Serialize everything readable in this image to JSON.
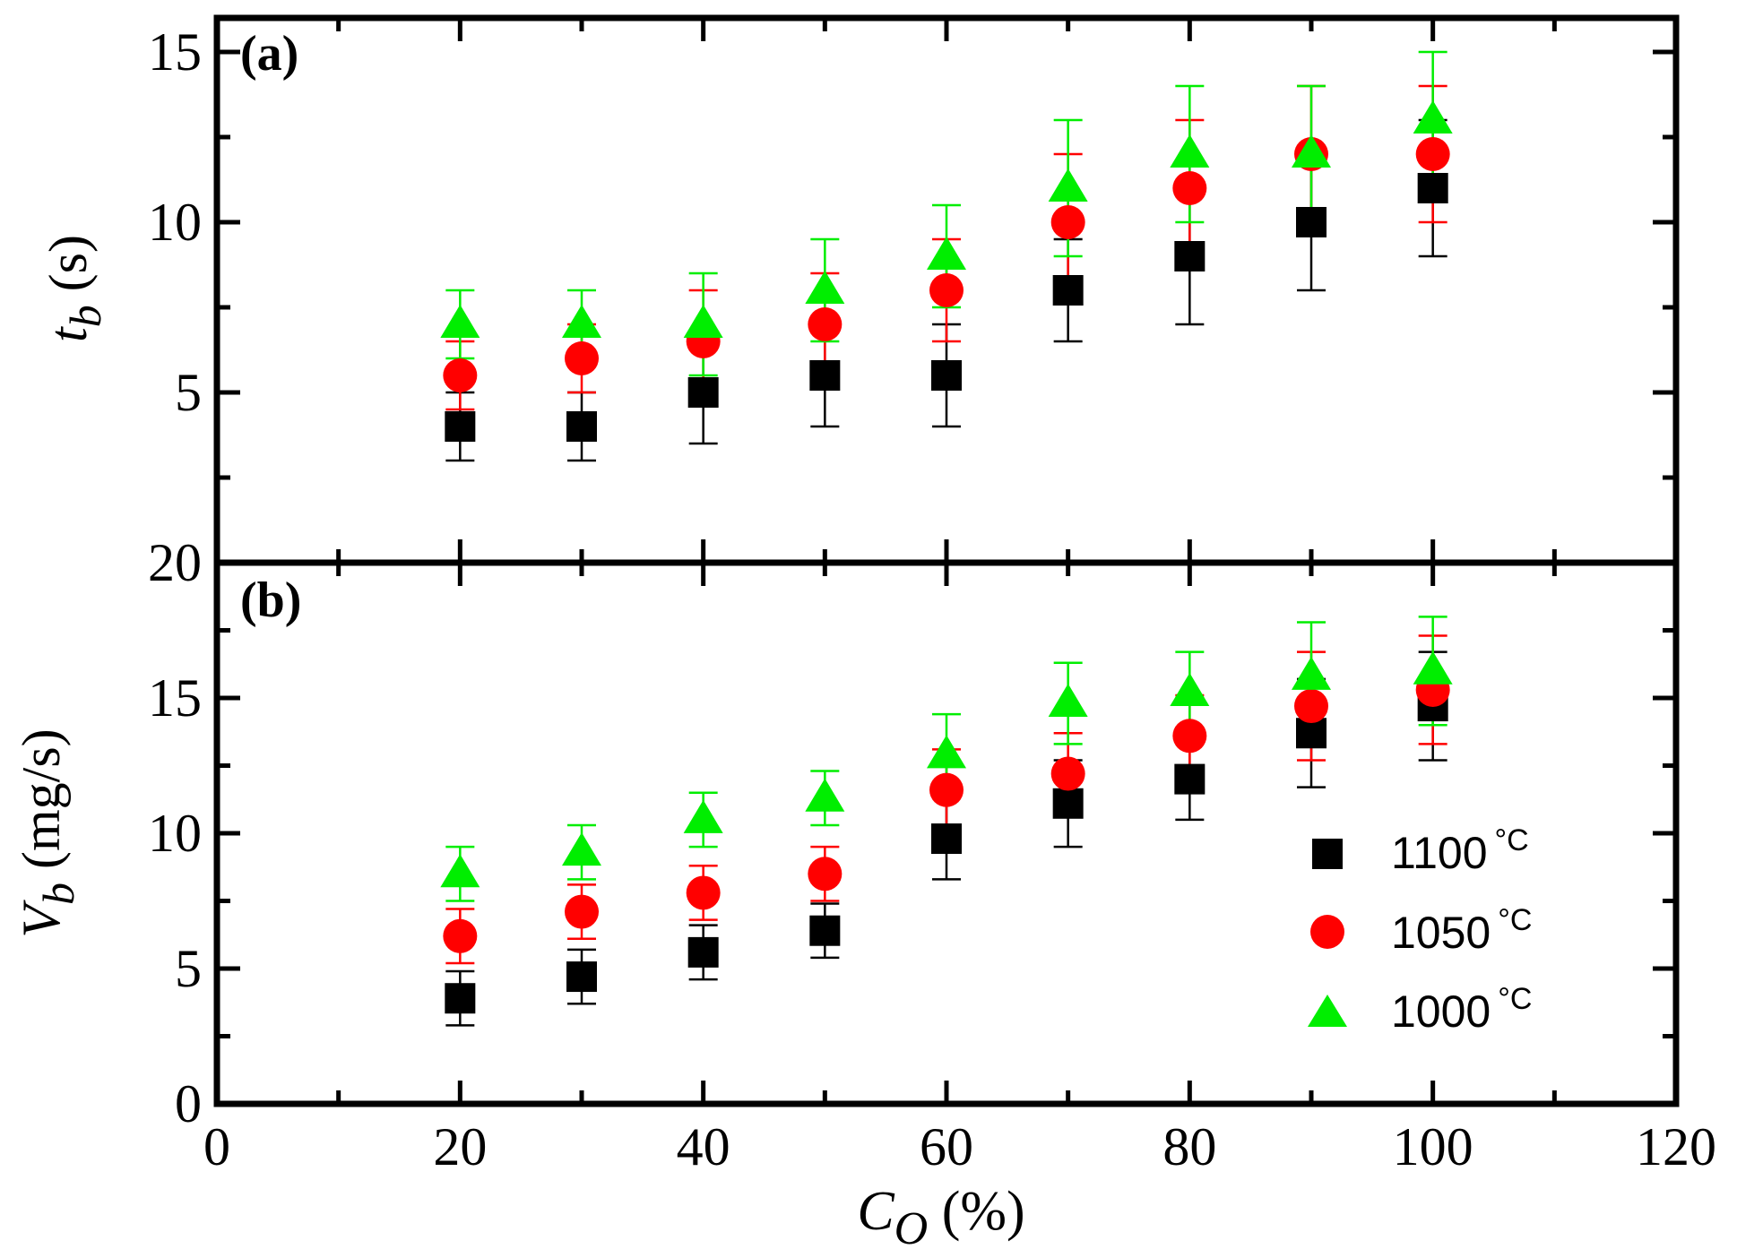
{
  "chart_data": [
    {
      "type": "scatter",
      "panel_label": "(a)",
      "ylabel_var": "t",
      "ylabel_sub": "b",
      "ylabel_unit": " (s)",
      "xlim": [
        0,
        120
      ],
      "ylim": [
        0,
        16
      ],
      "yticks": [
        5,
        10,
        15
      ],
      "error_bars": true,
      "series": [
        {
          "name": "1100 °C",
          "marker": "square",
          "color": "#000000",
          "x": [
            20,
            30,
            40,
            50,
            60,
            70,
            80,
            90,
            100
          ],
          "y": [
            4,
            4,
            5,
            5.5,
            5.5,
            8,
            9,
            10,
            11
          ],
          "err": [
            1,
            1,
            1.5,
            1.5,
            1.5,
            1.5,
            2,
            2,
            2
          ]
        },
        {
          "name": "1050 °C",
          "marker": "circle",
          "color": "#ff0000",
          "x": [
            20,
            30,
            40,
            50,
            60,
            70,
            80,
            90,
            100
          ],
          "y": [
            5.5,
            6,
            6.5,
            7,
            8,
            10,
            11,
            12,
            12
          ],
          "err": [
            1,
            1,
            1.5,
            1.5,
            1.5,
            2,
            2,
            2,
            2
          ]
        },
        {
          "name": "1000 °C",
          "marker": "triangle",
          "color": "#00ee00",
          "x": [
            20,
            30,
            40,
            50,
            60,
            70,
            80,
            90,
            100
          ],
          "y": [
            7,
            7,
            7,
            8,
            9,
            11,
            12,
            12,
            13
          ],
          "err": [
            1,
            1,
            1.5,
            1.5,
            1.5,
            2,
            2,
            2,
            2
          ]
        }
      ]
    },
    {
      "type": "scatter",
      "panel_label": "(b)",
      "ylabel_var": "V",
      "ylabel_sub": "b",
      "ylabel_unit": " (mg/s)",
      "xlim": [
        0,
        120
      ],
      "ylim": [
        0,
        20
      ],
      "yticks": [
        0,
        5,
        10,
        15,
        20
      ],
      "error_bars": true,
      "legend_position": "bottom-right",
      "series": [
        {
          "name": "1100 °C",
          "marker": "square",
          "color": "#000000",
          "x": [
            20,
            30,
            40,
            50,
            60,
            70,
            80,
            90,
            100
          ],
          "y": [
            3.9,
            4.7,
            5.6,
            6.4,
            9.8,
            11.1,
            12.0,
            13.7,
            14.7
          ],
          "err": [
            1,
            1,
            1,
            1,
            1.5,
            1.6,
            1.5,
            2,
            2
          ]
        },
        {
          "name": "1050 °C",
          "marker": "circle",
          "color": "#ff0000",
          "x": [
            20,
            30,
            40,
            50,
            60,
            70,
            80,
            90,
            100
          ],
          "y": [
            6.2,
            7.1,
            7.8,
            8.5,
            11.6,
            12.2,
            13.6,
            14.7,
            15.3
          ],
          "err": [
            1,
            1,
            1,
            1,
            1.5,
            1.5,
            1.5,
            2,
            2
          ]
        },
        {
          "name": "1000 °C",
          "marker": "triangle",
          "color": "#00ee00",
          "x": [
            20,
            30,
            40,
            50,
            60,
            70,
            80,
            90,
            100
          ],
          "y": [
            8.5,
            9.3,
            10.5,
            11.3,
            12.9,
            14.8,
            15.2,
            15.8,
            16.0
          ],
          "err": [
            1,
            1,
            1,
            1,
            1.5,
            1.5,
            1.5,
            2,
            2
          ]
        }
      ]
    }
  ],
  "x_axis": {
    "ticks": [
      0,
      20,
      40,
      60,
      80,
      100,
      120
    ],
    "label_var": "C",
    "label_sub": "O",
    "label_unit": " (%)"
  },
  "legend": {
    "entries": [
      {
        "value": "1100",
        "unit": "°C",
        "marker": "square",
        "color": "#000000"
      },
      {
        "value": "1050",
        "unit": "°C",
        "marker": "circle",
        "color": "#ff0000"
      },
      {
        "value": "1000",
        "unit": "°C",
        "marker": "triangle",
        "color": "#00ee00"
      }
    ]
  }
}
